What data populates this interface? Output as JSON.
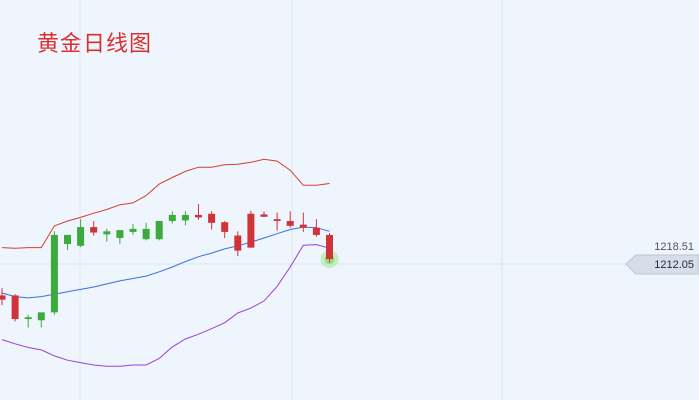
{
  "title": "黄金日线图",
  "chart_data": {
    "type": "candlestick",
    "title": "黄金日线图",
    "y_tick_labels": [
      "1218.51"
    ],
    "current_price": "1212.05",
    "grid": true,
    "colors": {
      "up": "#3caa3c",
      "down": "#d0343a",
      "upper_band": "#d04030",
      "middle_band": "#3a6fe0",
      "lower_band": "#9b3fd8",
      "background": "#eef5fc",
      "price_tag": "#d6dfe9"
    },
    "candles": [
      {
        "open": 1211.0,
        "high": 1212.2,
        "low": 1209.4,
        "close": 1210.3
      },
      {
        "open": 1211.0,
        "high": 1211.2,
        "low": 1206.7,
        "close": 1207.1
      },
      {
        "open": 1207.1,
        "high": 1207.8,
        "low": 1205.7,
        "close": 1207.4
      },
      {
        "open": 1206.9,
        "high": 1208.2,
        "low": 1205.7,
        "close": 1208.2
      },
      {
        "open": 1208.2,
        "high": 1221.6,
        "low": 1207.8,
        "close": 1221.0
      },
      {
        "open": 1219.5,
        "high": 1221.0,
        "low": 1218.5,
        "close": 1221.0
      },
      {
        "open": 1219.2,
        "high": 1223.6,
        "low": 1219.0,
        "close": 1222.3
      },
      {
        "open": 1222.3,
        "high": 1223.3,
        "low": 1220.9,
        "close": 1221.4
      },
      {
        "open": 1221.1,
        "high": 1222.0,
        "low": 1219.9,
        "close": 1221.6
      },
      {
        "open": 1220.5,
        "high": 1221.8,
        "low": 1219.5,
        "close": 1221.8
      },
      {
        "open": 1221.5,
        "high": 1222.8,
        "low": 1221.0,
        "close": 1222.0
      },
      {
        "open": 1220.3,
        "high": 1223.0,
        "low": 1220.1,
        "close": 1222.0
      },
      {
        "open": 1220.3,
        "high": 1223.3,
        "low": 1220.1,
        "close": 1223.3
      },
      {
        "open": 1223.3,
        "high": 1224.9,
        "low": 1222.9,
        "close": 1224.3
      },
      {
        "open": 1223.4,
        "high": 1224.9,
        "low": 1222.6,
        "close": 1224.3
      },
      {
        "open": 1224.3,
        "high": 1226.1,
        "low": 1223.5,
        "close": 1223.9
      },
      {
        "open": 1224.5,
        "high": 1224.9,
        "low": 1221.9,
        "close": 1223.0
      },
      {
        "open": 1223.1,
        "high": 1223.3,
        "low": 1220.5,
        "close": 1221.5
      },
      {
        "open": 1220.9,
        "high": 1221.6,
        "low": 1217.5,
        "close": 1218.4
      },
      {
        "open": 1224.5,
        "high": 1225.0,
        "low": 1218.9,
        "close": 1218.9
      },
      {
        "open": 1224.4,
        "high": 1224.9,
        "low": 1224.0,
        "close": 1224.0
      },
      {
        "open": 1223.6,
        "high": 1224.7,
        "low": 1221.7,
        "close": 1223.3
      },
      {
        "open": 1223.3,
        "high": 1224.9,
        "low": 1222.2,
        "close": 1222.5
      },
      {
        "open": 1222.7,
        "high": 1224.7,
        "low": 1221.5,
        "close": 1222.2
      },
      {
        "open": 1222.2,
        "high": 1223.6,
        "low": 1220.7,
        "close": 1221.0
      },
      {
        "open": 1221.0,
        "high": 1221.3,
        "low": 1216.4,
        "close": 1217.0
      }
    ],
    "upper_band": [
      1218.9,
      1218.8,
      1218.9,
      1218.9,
      1222.5,
      1223.3,
      1223.9,
      1224.6,
      1225.2,
      1226.0,
      1226.3,
      1227.5,
      1229.4,
      1230.5,
      1231.5,
      1232.2,
      1232.2,
      1232.6,
      1232.7,
      1233.0,
      1233.5,
      1233.2,
      1231.7,
      1229.2,
      1229.2,
      1229.5
    ],
    "middle_band": [
      1211.4,
      1210.8,
      1210.6,
      1210.8,
      1211.2,
      1211.6,
      1212.0,
      1212.4,
      1212.9,
      1213.4,
      1213.8,
      1214.2,
      1214.9,
      1215.7,
      1216.6,
      1217.4,
      1218.0,
      1218.7,
      1219.2,
      1219.8,
      1220.5,
      1221.2,
      1221.9,
      1222.3,
      1222.2,
      1221.6
    ],
    "lower_band": [
      1203.7,
      1203.0,
      1202.4,
      1202.0,
      1201.0,
      1200.3,
      1199.9,
      1199.5,
      1199.3,
      1199.3,
      1199.5,
      1199.5,
      1200.6,
      1202.5,
      1203.8,
      1204.6,
      1205.5,
      1206.5,
      1208.1,
      1208.9,
      1210.1,
      1212.5,
      1215.7,
      1219.3,
      1219.4,
      1218.8
    ]
  }
}
